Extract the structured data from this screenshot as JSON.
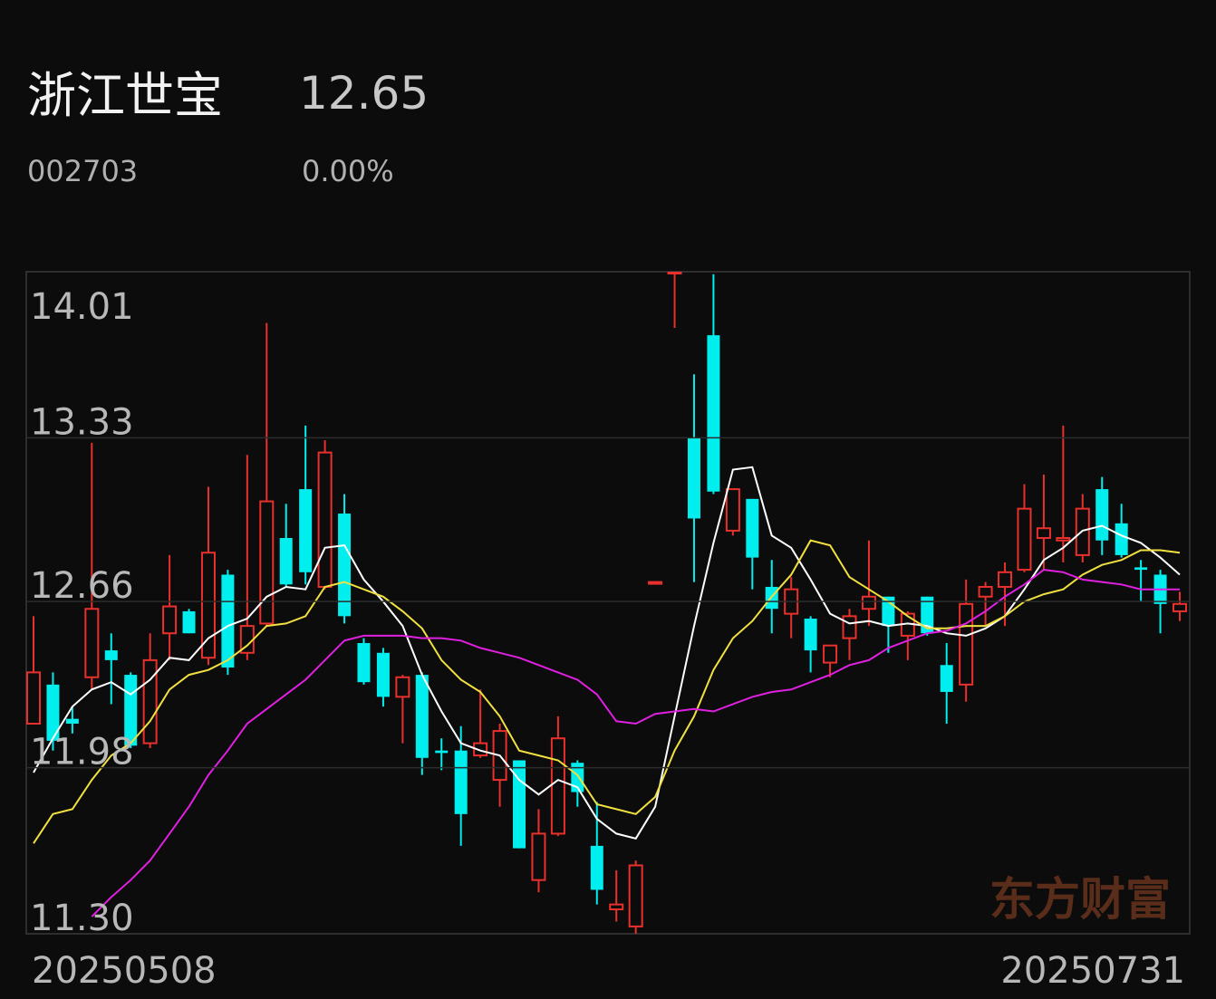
{
  "header": {
    "title": "浙江世宝",
    "price": "12.65",
    "code": "002703",
    "change": "0.00%"
  },
  "chart_data": {
    "type": "candlestick",
    "categories": [
      "20250508",
      null,
      null,
      null,
      null,
      null,
      null,
      null,
      null,
      null,
      null,
      null,
      null,
      null,
      null,
      null,
      null,
      null,
      null,
      null,
      null,
      null,
      null,
      null,
      null,
      null,
      null,
      null,
      null,
      null,
      null,
      null,
      null,
      null,
      null,
      null,
      null,
      null,
      null,
      null,
      null,
      null,
      null,
      null,
      null,
      null,
      null,
      null,
      null,
      null,
      null,
      null,
      null,
      null,
      null,
      null,
      null,
      null,
      null,
      "20250731"
    ],
    "open": [
      12.16,
      12.32,
      12.18,
      12.35,
      12.46,
      12.36,
      12.08,
      12.53,
      12.62,
      12.43,
      12.77,
      12.45,
      12.57,
      12.92,
      13.12,
      12.72,
      13.02,
      12.49,
      12.45,
      12.27,
      12.36,
      12.05,
      12.05,
      12.03,
      11.93,
      12.01,
      11.52,
      11.71,
      12.0,
      11.66,
      11.4,
      11.33,
      12.74,
      14.01,
      13.33,
      13.75,
      12.95,
      13.08,
      12.72,
      12.61,
      12.59,
      12.41,
      12.51,
      12.63,
      12.68,
      12.52,
      12.68,
      12.4,
      12.32,
      12.68,
      12.72,
      12.79,
      12.92,
      12.91,
      12.85,
      13.12,
      12.98,
      12.8,
      12.77,
      12.62
    ],
    "high": [
      12.6,
      12.37,
      12.23,
      13.31,
      12.53,
      12.37,
      12.53,
      12.85,
      12.63,
      13.13,
      12.79,
      13.26,
      13.8,
      13.06,
      13.38,
      13.32,
      13.1,
      12.51,
      12.47,
      12.36,
      12.37,
      12.1,
      12.15,
      12.3,
      12.16,
      12.01,
      11.81,
      12.19,
      12.01,
      11.84,
      11.56,
      11.6,
      12.74,
      14.01,
      13.59,
      14.0,
      13.12,
      13.08,
      12.83,
      12.76,
      12.6,
      12.48,
      12.63,
      12.91,
      12.68,
      12.62,
      12.68,
      12.49,
      12.75,
      12.74,
      12.82,
      13.14,
      13.18,
      13.38,
      13.1,
      13.17,
      13.06,
      12.83,
      12.79,
      12.7
    ],
    "low": [
      12.16,
      12.05,
      12.12,
      12.3,
      12.24,
      12.06,
      12.06,
      12.42,
      12.53,
      12.4,
      12.36,
      12.42,
      12.56,
      12.72,
      12.73,
      12.71,
      12.57,
      12.32,
      12.23,
      12.08,
      11.95,
      11.97,
      11.66,
      12.02,
      11.82,
      11.65,
      11.47,
      11.7,
      11.82,
      11.42,
      11.35,
      11.3,
      12.74,
      13.78,
      12.74,
      13.1,
      12.93,
      12.71,
      12.53,
      12.51,
      12.37,
      12.35,
      12.42,
      12.56,
      12.45,
      12.42,
      12.52,
      12.16,
      12.25,
      12.56,
      12.56,
      12.78,
      12.79,
      12.82,
      12.82,
      12.85,
      12.84,
      12.66,
      12.53,
      12.58
    ],
    "close": [
      12.37,
      12.09,
      12.16,
      12.63,
      12.42,
      12.07,
      12.42,
      12.64,
      12.53,
      12.86,
      12.39,
      12.56,
      13.07,
      12.73,
      12.78,
      13.27,
      12.6,
      12.33,
      12.27,
      12.35,
      12.02,
      12.04,
      11.79,
      12.08,
      12.13,
      11.65,
      11.71,
      12.1,
      11.88,
      11.48,
      11.42,
      11.58,
      12.74,
      14.01,
      13.0,
      13.11,
      13.12,
      12.84,
      12.63,
      12.71,
      12.46,
      12.48,
      12.6,
      12.68,
      12.56,
      12.61,
      12.53,
      12.29,
      12.65,
      12.72,
      12.78,
      13.04,
      12.96,
      12.92,
      13.04,
      12.91,
      12.85,
      12.79,
      12.65,
      12.65
    ],
    "up_color": "#e8302c",
    "down_color": "#00eeee",
    "lines": [
      {
        "color": "#ffffff",
        "values": [
          11.96,
          12.1,
          12.23,
          12.3,
          12.33,
          12.28,
          12.34,
          12.43,
          12.42,
          12.51,
          12.56,
          12.59,
          12.68,
          12.72,
          12.71,
          12.88,
          12.89,
          12.75,
          12.66,
          12.56,
          12.36,
          12.21,
          12.08,
          12.05,
          12.03,
          11.93,
          11.87,
          11.93,
          11.9,
          11.77,
          11.71,
          11.69,
          11.82,
          12.19,
          12.56,
          12.9,
          13.2,
          13.21,
          12.93,
          12.88,
          12.75,
          12.61,
          12.57,
          12.58,
          12.56,
          12.57,
          12.56,
          12.53,
          12.52,
          12.55,
          12.6,
          12.71,
          12.83,
          12.88,
          12.95,
          12.97,
          12.93,
          12.9,
          12.84,
          12.77
        ]
      },
      {
        "color": "#f0e040",
        "values": [
          11.67,
          11.79,
          11.81,
          11.93,
          12.03,
          12.08,
          12.17,
          12.3,
          12.36,
          12.38,
          12.42,
          12.48,
          12.56,
          12.57,
          12.6,
          12.72,
          12.74,
          12.71,
          12.68,
          12.62,
          12.55,
          12.42,
          12.34,
          12.29,
          12.19,
          12.05,
          12.03,
          12.01,
          11.95,
          11.83,
          11.81,
          11.79,
          11.86,
          12.05,
          12.19,
          12.38,
          12.51,
          12.58,
          12.68,
          12.77,
          12.91,
          12.89,
          12.76,
          12.71,
          12.66,
          12.6,
          12.55,
          12.55,
          12.56,
          12.56,
          12.6,
          12.66,
          12.69,
          12.71,
          12.77,
          12.81,
          12.83,
          12.87,
          12.87,
          12.86
        ]
      },
      {
        "color": "#e020e0",
        "values": [
          null,
          null,
          null,
          11.37,
          11.45,
          11.52,
          11.6,
          11.71,
          11.82,
          11.95,
          12.05,
          12.16,
          12.22,
          12.28,
          12.34,
          12.42,
          12.5,
          12.52,
          12.52,
          12.52,
          12.51,
          12.51,
          12.5,
          12.47,
          12.45,
          12.43,
          12.4,
          12.37,
          12.34,
          12.28,
          12.17,
          12.16,
          12.2,
          12.21,
          12.22,
          12.21,
          12.24,
          12.27,
          12.29,
          12.3,
          12.33,
          12.36,
          12.4,
          12.42,
          12.47,
          12.5,
          12.53,
          12.54,
          12.57,
          12.62,
          12.68,
          12.73,
          12.79,
          12.78,
          12.75,
          12.74,
          12.73,
          12.71,
          12.71,
          12.71
        ]
      }
    ],
    "ylim": [
      11.3,
      14.01
    ],
    "yticks": [
      {
        "value": 11.3,
        "label": "11.30"
      },
      11.98,
      12.66,
      13.33,
      14.01
    ],
    "grid": true,
    "watermark": "东方财富"
  }
}
